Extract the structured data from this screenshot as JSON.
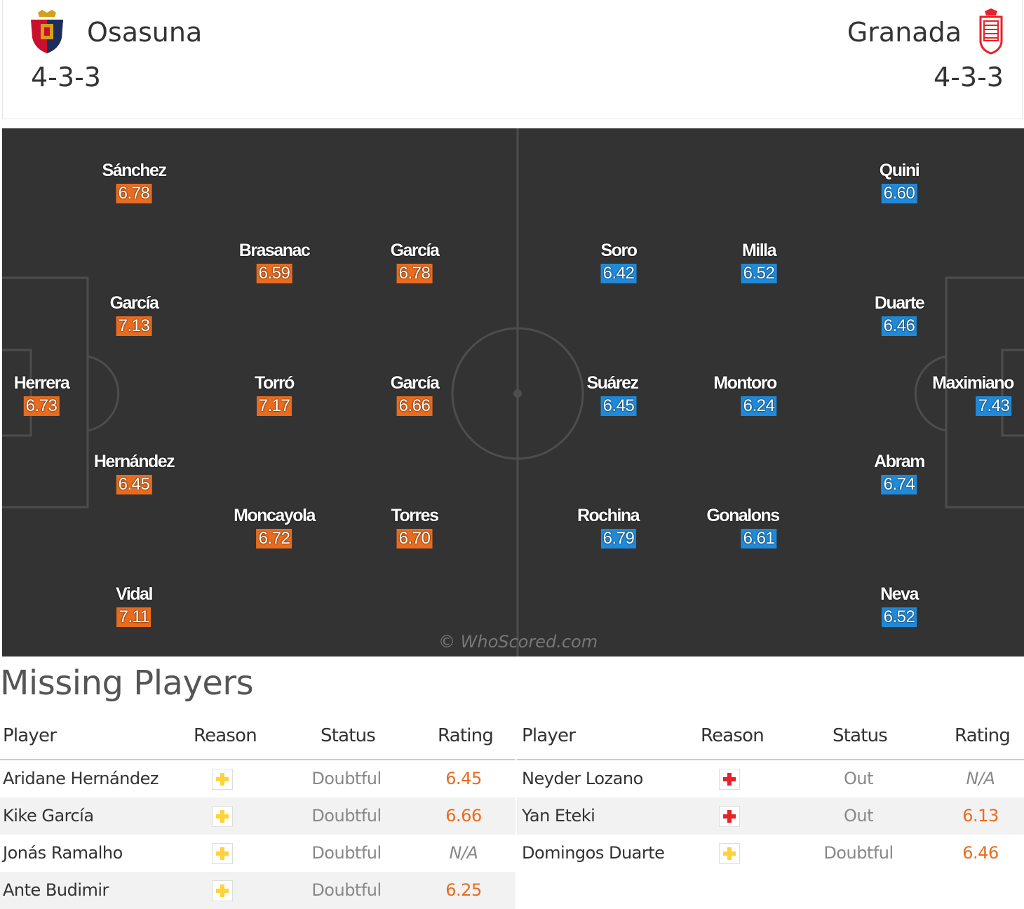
{
  "home": {
    "name": "Osasuna",
    "formation": "4-3-3",
    "color": "#e96c1e",
    "crest": "osasuna-crest-icon",
    "players": [
      {
        "name": "Sánchez",
        "rating": "6.78"
      },
      {
        "name": "García",
        "rating": "7.13"
      },
      {
        "name": "Herrera",
        "rating": "6.73"
      },
      {
        "name": "Hernández",
        "rating": "6.45"
      },
      {
        "name": "Vidal",
        "rating": "7.11"
      },
      {
        "name": "Brasanac",
        "rating": "6.59"
      },
      {
        "name": "Torró",
        "rating": "7.17"
      },
      {
        "name": "Moncayola",
        "rating": "6.72"
      },
      {
        "name": "García",
        "rating": "6.78"
      },
      {
        "name": "García",
        "rating": "6.66"
      },
      {
        "name": "Torres",
        "rating": "6.70"
      }
    ]
  },
  "away": {
    "name": "Granada",
    "formation": "4-3-3",
    "color": "#1f8ad9",
    "crest": "granada-crest-icon",
    "players": [
      {
        "name": "Quini",
        "rating": "6.60"
      },
      {
        "name": "Duarte",
        "rating": "6.46"
      },
      {
        "name": "Maximiano",
        "rating": "7.43"
      },
      {
        "name": "Abram",
        "rating": "6.74"
      },
      {
        "name": "Neva",
        "rating": "6.52"
      },
      {
        "name": "Milla",
        "rating": "6.52"
      },
      {
        "name": "Montoro",
        "rating": "6.24"
      },
      {
        "name": "Gonalons",
        "rating": "6.61"
      },
      {
        "name": "Soro",
        "rating": "6.42"
      },
      {
        "name": "Suárez",
        "rating": "6.45"
      },
      {
        "name": "Rochina",
        "rating": "6.79"
      }
    ]
  },
  "watermark": "© WhoScored.com",
  "missing": {
    "title": "Missing Players",
    "headers": {
      "player": "Player",
      "reason": "Reason",
      "status": "Status",
      "rating": "Rating"
    },
    "home_rows": [
      {
        "player": "Aridane Hernández",
        "reason": "yellow-cross-icon",
        "status": "Doubtful",
        "rating": "6.45"
      },
      {
        "player": "Kike García",
        "reason": "yellow-cross-icon",
        "status": "Doubtful",
        "rating": "6.66"
      },
      {
        "player": "Jonás Ramalho",
        "reason": "yellow-cross-icon",
        "status": "Doubtful",
        "rating": "N/A"
      },
      {
        "player": "Ante Budimir",
        "reason": "yellow-cross-icon",
        "status": "Doubtful",
        "rating": "6.25"
      }
    ],
    "away_rows": [
      {
        "player": "Neyder Lozano",
        "reason": "red-cross-icon",
        "status": "Out",
        "rating": "N/A"
      },
      {
        "player": "Yan Eteki",
        "reason": "red-cross-icon",
        "status": "Out",
        "rating": "6.13"
      },
      {
        "player": "Domingos Duarte",
        "reason": "yellow-cross-icon",
        "status": "Doubtful",
        "rating": "6.46"
      }
    ]
  }
}
